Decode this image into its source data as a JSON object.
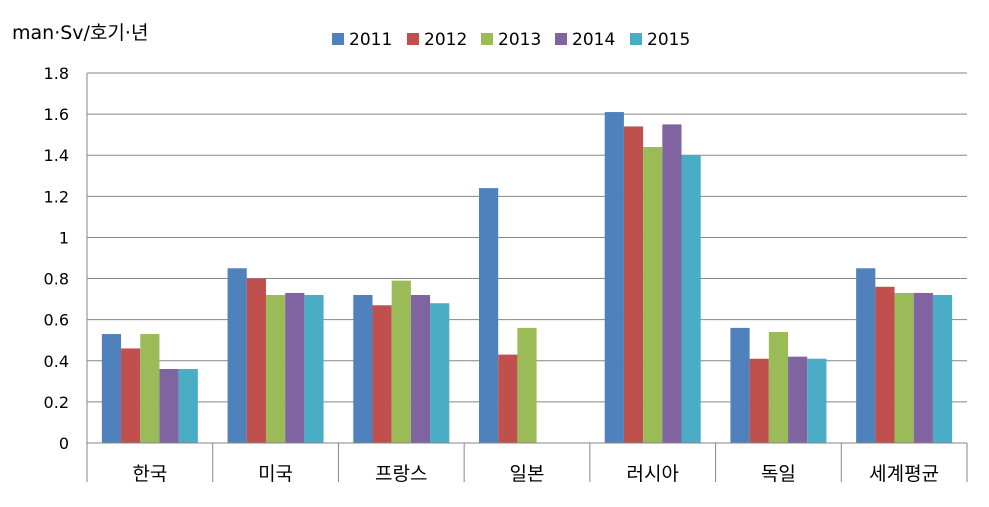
{
  "chart_data": {
    "type": "bar",
    "title": "",
    "xlabel": "",
    "ylabel": "man·Sv/호기·년",
    "ylim": [
      0,
      1.8
    ],
    "yticks": [
      "0",
      "0.2",
      "0.4",
      "0.6",
      "0.8",
      "1",
      "1.2",
      "1.4",
      "1.6",
      "1.8"
    ],
    "grid": true,
    "legend_position": "top",
    "categories": [
      "한국",
      "미국",
      "프랑스",
      "일본",
      "러시아",
      "독일",
      "세계평균"
    ],
    "series": [
      {
        "name": "2011",
        "color": "#4F81BD",
        "values": [
          0.53,
          0.85,
          0.72,
          1.24,
          1.61,
          0.56,
          0.85
        ]
      },
      {
        "name": "2012",
        "color": "#C0504D",
        "values": [
          0.46,
          0.8,
          0.67,
          0.43,
          1.54,
          0.41,
          0.76
        ]
      },
      {
        "name": "2013",
        "color": "#9BBB59",
        "values": [
          0.53,
          0.72,
          0.79,
          0.56,
          1.44,
          0.54,
          0.73
        ]
      },
      {
        "name": "2014",
        "color": "#8064A2",
        "values": [
          0.36,
          0.73,
          0.72,
          null,
          1.55,
          0.42,
          0.73
        ]
      },
      {
        "name": "2015",
        "color": "#4BACC6",
        "values": [
          0.36,
          0.72,
          0.68,
          null,
          1.4,
          0.41,
          0.72
        ]
      }
    ]
  }
}
